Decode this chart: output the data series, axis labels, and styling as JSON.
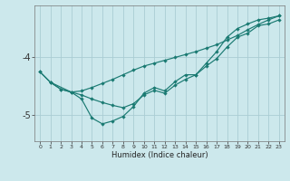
{
  "xlabel": "Humidex (Indice chaleur)",
  "bg_color": "#cce8ec",
  "grid_color": "#aacdd4",
  "line_color": "#1a7a72",
  "line1": {
    "x": [
      0,
      1,
      2,
      3,
      4,
      5,
      6,
      7,
      8,
      9,
      10,
      11,
      12,
      13,
      14,
      15,
      16,
      17,
      18,
      19,
      20,
      21,
      22,
      23
    ],
    "y": [
      -4.25,
      -4.43,
      -4.55,
      -4.6,
      -4.58,
      -4.52,
      -4.45,
      -4.38,
      -4.3,
      -4.22,
      -4.15,
      -4.1,
      -4.05,
      -4.0,
      -3.95,
      -3.9,
      -3.84,
      -3.78,
      -3.7,
      -3.62,
      -3.52,
      -3.43,
      -3.35,
      -3.28
    ]
  },
  "line2": {
    "x": [
      0,
      1,
      2,
      3,
      4,
      5,
      6,
      7,
      8,
      9,
      10,
      11,
      12,
      13,
      14,
      15,
      16,
      17,
      18,
      19,
      20,
      21,
      22,
      23
    ],
    "y": [
      -4.25,
      -4.43,
      -4.55,
      -4.6,
      -4.65,
      -4.72,
      -4.78,
      -4.83,
      -4.87,
      -4.8,
      -4.65,
      -4.57,
      -4.62,
      -4.48,
      -4.38,
      -4.3,
      -4.15,
      -4.02,
      -3.82,
      -3.65,
      -3.58,
      -3.45,
      -3.42,
      -3.35
    ]
  },
  "line3": {
    "x": [
      1,
      3,
      4,
      5,
      6,
      7,
      8,
      9,
      10,
      11,
      12,
      13,
      14,
      15,
      16,
      17,
      18,
      19,
      20,
      21,
      22,
      23
    ],
    "y": [
      -4.43,
      -4.6,
      -4.72,
      -5.05,
      -5.15,
      -5.1,
      -5.02,
      -4.85,
      -4.62,
      -4.52,
      -4.58,
      -4.42,
      -4.3,
      -4.3,
      -4.1,
      -3.9,
      -3.65,
      -3.5,
      -3.42,
      -3.35,
      -3.32,
      -3.28
    ]
  },
  "yticks": [
    -5,
    -4
  ],
  "ylim": [
    -5.45,
    -3.1
  ],
  "xlim": [
    -0.5,
    23.5
  ],
  "xticks": [
    0,
    1,
    2,
    3,
    4,
    5,
    6,
    7,
    8,
    9,
    10,
    11,
    12,
    13,
    14,
    15,
    16,
    17,
    18,
    19,
    20,
    21,
    22,
    23
  ]
}
